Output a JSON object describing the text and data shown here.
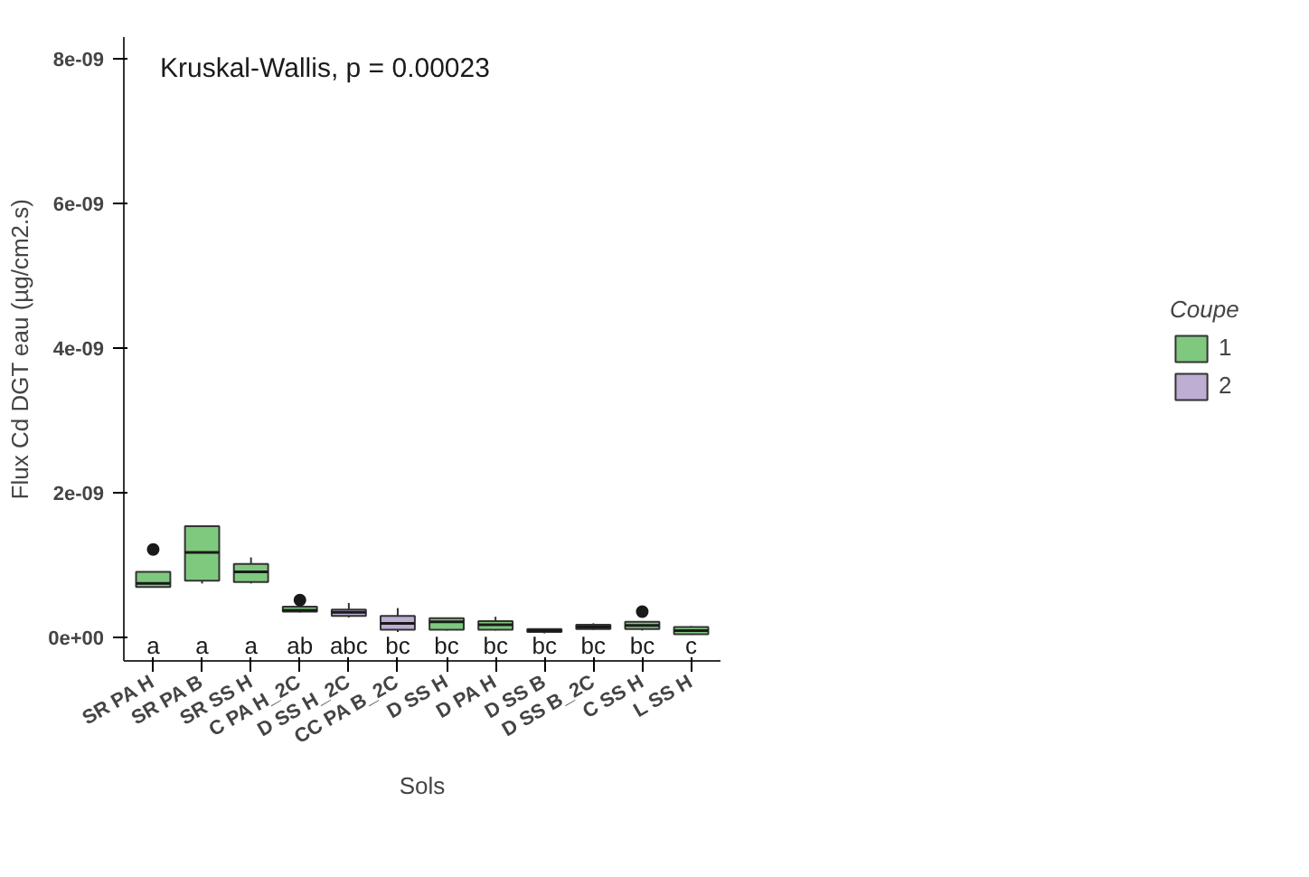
{
  "chart_data": {
    "type": "box",
    "xlabel": "Sols",
    "ylabel": "Flux Cd DGT eau (µg/cm2.s)",
    "legend_title": "Coupe",
    "legend": "right",
    "grid": false,
    "categories": [
      "SR PA H",
      "SR PA B",
      "SR SS H",
      "C PA H_2C",
      "D SS H_2C",
      "CC PA B_2C",
      "D SS H",
      "D PA H",
      "D SS B",
      "D SS B_2C",
      "C SS H",
      "L SS H"
    ],
    "ylim": [
      -3.2e-10,
      8.3e-09
    ],
    "yticks": [
      {
        "value": 0,
        "label": "0e+00"
      },
      {
        "value": 2e-09,
        "label": "2e-09"
      },
      {
        "value": 4e-09,
        "label": "4e-09"
      },
      {
        "value": 6e-09,
        "label": "6e-09"
      },
      {
        "value": 8e-09,
        "label": "8e-09"
      }
    ],
    "series": [
      {
        "name": "1",
        "color": "#7fc97f",
        "boxes": [
          {
            "low": 7e-10,
            "q1": 7e-10,
            "median": 7.5e-10,
            "q3": 9.1e-10,
            "high": 9.1e-10,
            "outliers": [
              1.22e-09
            ]
          },
          {
            "low": 7.5e-10,
            "q1": 7.9e-10,
            "median": 1.18e-09,
            "q3": 1.54e-09,
            "high": 1.54e-09
          },
          {
            "low": 7.5e-10,
            "q1": 7.7e-10,
            "median": 9.1e-10,
            "q3": 1.02e-09,
            "high": 1.11e-09
          },
          {
            "low": 3.5e-10,
            "q1": 3.6e-10,
            "median": 3.8e-10,
            "q3": 4.3e-10,
            "high": 4.5e-10,
            "outliers": [
              5.2e-10
            ]
          },
          null,
          null,
          {
            "low": 1e-10,
            "q1": 1.1e-10,
            "median": 2.2e-10,
            "q3": 2.7e-10,
            "high": 2.8e-10
          },
          {
            "low": 1e-10,
            "q1": 1.1e-10,
            "median": 1.8e-10,
            "q3": 2.3e-10,
            "high": 2.9e-10
          },
          {
            "low": 6e-11,
            "q1": 8e-11,
            "median": 1e-10,
            "q3": 1.2e-10,
            "high": 1.3e-10
          },
          null,
          {
            "low": 1e-10,
            "q1": 1.2e-10,
            "median": 1.7e-10,
            "q3": 2.2e-10,
            "high": 2.3e-10,
            "outliers": [
              3.6e-10
            ]
          },
          {
            "low": 4e-11,
            "q1": 5e-11,
            "median": 1e-10,
            "q3": 1.5e-10,
            "high": 1.6e-10
          }
        ]
      },
      {
        "name": "2",
        "color": "#beaed4",
        "boxes": [
          null,
          null,
          null,
          null,
          {
            "low": 2.8e-10,
            "q1": 3e-10,
            "median": 3.5e-10,
            "q3": 3.9e-10,
            "high": 4.8e-10
          },
          {
            "low": 8e-11,
            "q1": 1.1e-10,
            "median": 2e-10,
            "q3": 3e-10,
            "high": 4.1e-10
          },
          null,
          null,
          null,
          {
            "low": 1.1e-10,
            "q1": 1.2e-10,
            "median": 1.5e-10,
            "q3": 1.8e-10,
            "high": 2e-10
          },
          null,
          null
        ]
      }
    ],
    "annotations": [
      "Kruskal-Wallis, p = 0.00023",
      "a",
      "a",
      "a",
      "ab",
      "abc",
      "bc",
      "bc",
      "bc",
      "bc",
      "bc",
      "bc",
      "c"
    ]
  }
}
